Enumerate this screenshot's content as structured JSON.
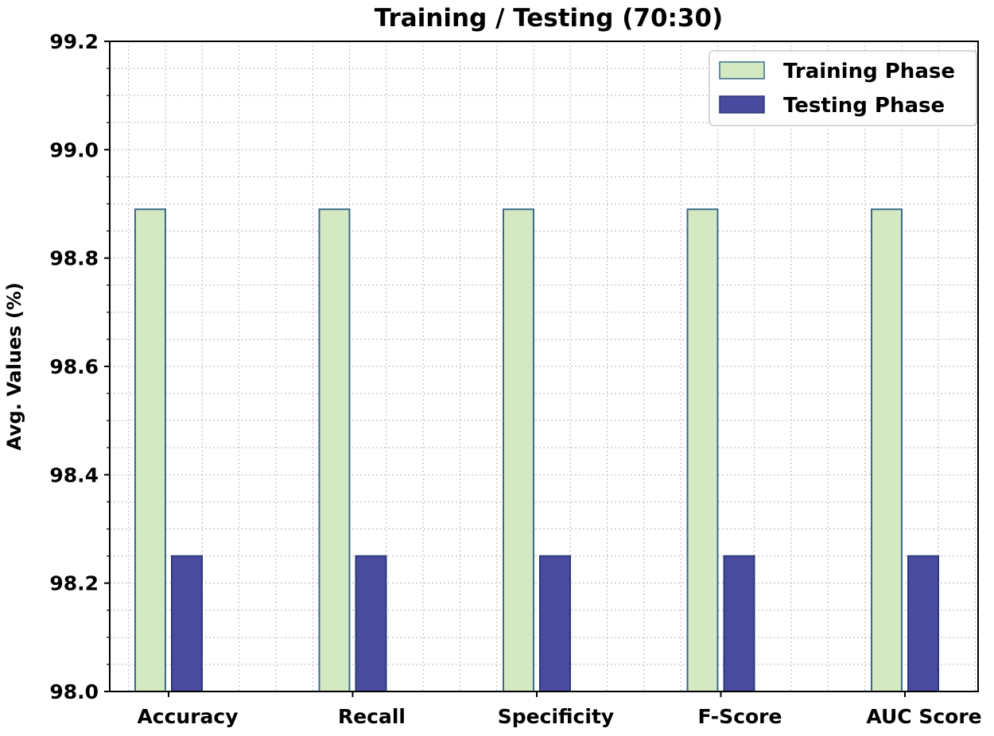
{
  "chart_data": {
    "type": "bar",
    "title": "Training / Testing (70:30)",
    "xlabel": "",
    "ylabel": "Avg. Values (%)",
    "categories": [
      "Accuracy",
      "Recall",
      "Specificity",
      "F-Score",
      "AUC Score"
    ],
    "series": [
      {
        "name": "Training Phase",
        "values": [
          98.89,
          98.89,
          98.89,
          98.89,
          98.89
        ],
        "color": "#d4e8c2",
        "edge_color": "#3a6a8c"
      },
      {
        "name": "Testing Phase",
        "values": [
          98.25,
          98.25,
          98.25,
          98.25,
          98.25
        ],
        "color": "#4a4a9e",
        "edge_color": "#2a3a7a"
      }
    ],
    "ylim": [
      98.0,
      99.2
    ],
    "yticks": [
      "98.0",
      "98.2",
      "98.4",
      "98.6",
      "98.8",
      "99.0",
      "99.2"
    ],
    "grid": true,
    "grid_style": "dotted",
    "legend_position": "top-right"
  }
}
